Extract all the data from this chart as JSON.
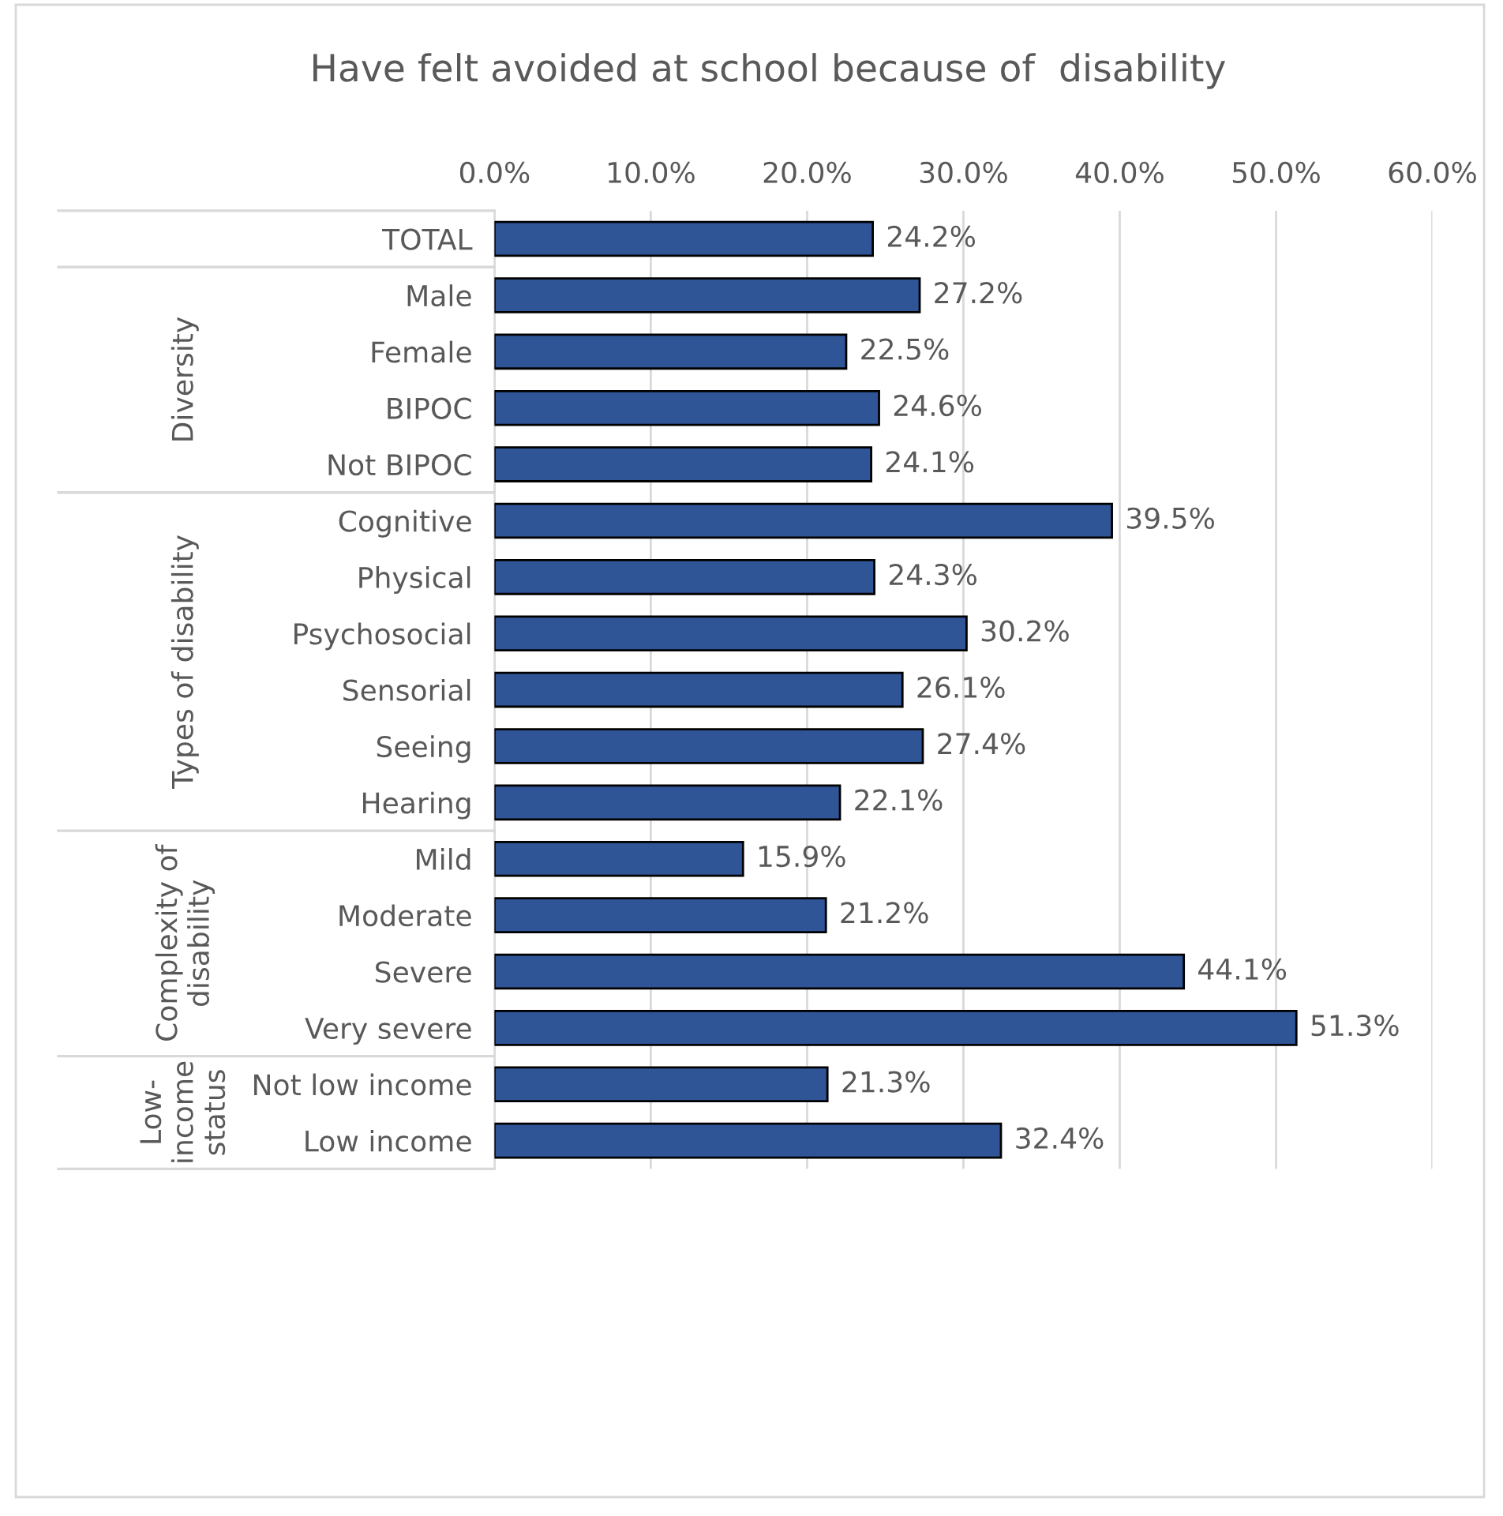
{
  "chart_data": {
    "type": "bar",
    "orientation": "horizontal",
    "title": "Have felt avoided at school because of  disability",
    "categories": [
      "TOTAL",
      "Male",
      "Female",
      "BIPOC",
      "Not BIPOC",
      "Cognitive",
      "Physical",
      "Psychosocial",
      "Sensorial",
      "Seeing",
      "Hearing",
      "Mild",
      "Moderate",
      "Severe",
      "Very severe",
      "Not low income",
      "Low income"
    ],
    "values": [
      24.2,
      27.2,
      22.5,
      24.6,
      24.1,
      39.5,
      24.3,
      30.2,
      26.1,
      27.4,
      22.1,
      15.9,
      21.2,
      44.1,
      51.3,
      21.3,
      32.4
    ],
    "value_labels": [
      "24.2%",
      "27.2%",
      "22.5%",
      "24.6%",
      "24.1%",
      "39.5%",
      "24.3%",
      "30.2%",
      "26.1%",
      "27.4%",
      "22.1%",
      "15.9%",
      "21.2%",
      "44.1%",
      "51.3%",
      "21.3%",
      "32.4%"
    ],
    "color": "#2f5597",
    "xlim": [
      0,
      60
    ],
    "xticks": [
      {
        "value": 0,
        "label": "0.0%"
      },
      {
        "value": 10,
        "label": "10.0%"
      },
      {
        "value": 20,
        "label": "20.0%"
      },
      {
        "value": 30,
        "label": "30.0%"
      },
      {
        "value": 40,
        "label": "40.0%"
      },
      {
        "value": 50,
        "label": "50.0%"
      },
      {
        "value": 60,
        "label": "60.0%"
      }
    ],
    "grid": "x",
    "annotations": [
      "Diversity",
      "Types of disability",
      "Complexity of\ndisability",
      "Low-\nincome\nstatus"
    ]
  }
}
